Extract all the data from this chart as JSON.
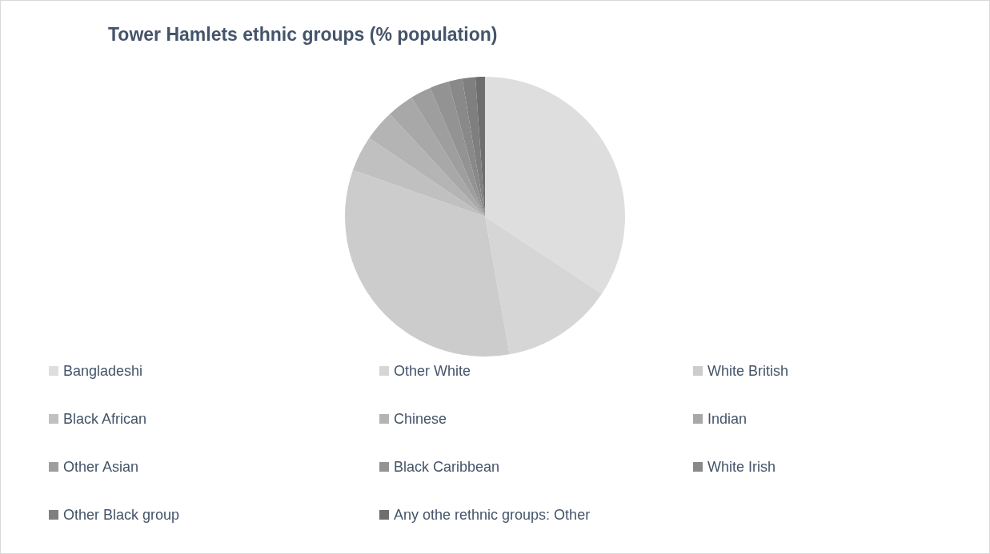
{
  "chart_data": {
    "type": "pie",
    "title": "Tower Hamlets ethnic groups (% population)",
    "categories": [
      "Bangladeshi",
      "Other White",
      "White British",
      "Black African",
      "Chinese",
      "Indian",
      "Other Asian",
      "Black Caribbean",
      "White Irish",
      "Other Black group",
      "Any othe rethnic groups: Other"
    ],
    "values": [
      34.3,
      12.9,
      33.2,
      4.1,
      3.6,
      3.1,
      2.4,
      2.2,
      1.6,
      1.5,
      1.1
    ],
    "colors": [
      "#dedede",
      "#d6d6d6",
      "#cccccc",
      "#c0c0c0",
      "#b4b4b4",
      "#a8a8a8",
      "#9e9e9e",
      "#939393",
      "#898989",
      "#7f7f7f",
      "#6e6e6e"
    ],
    "legend": "bottom"
  }
}
